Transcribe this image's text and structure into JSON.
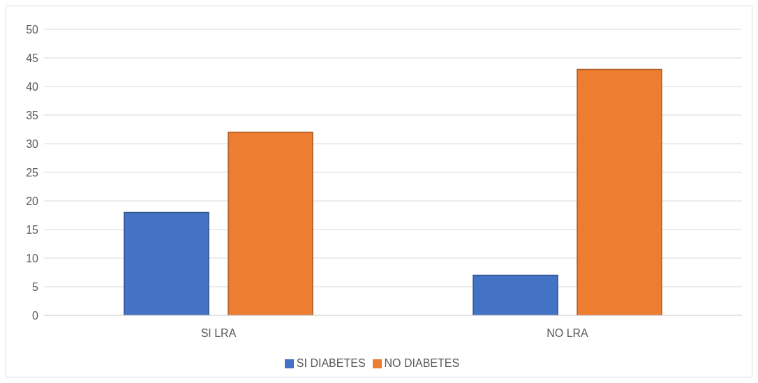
{
  "chart_data": {
    "type": "bar",
    "categories": [
      "SI LRA",
      "NO LRA"
    ],
    "series": [
      {
        "name": "SI DIABETES",
        "color": "#4472c4",
        "values": [
          18,
          7
        ]
      },
      {
        "name": "NO DIABETES",
        "color": "#ed7d31",
        "values": [
          32,
          43
        ]
      }
    ],
    "ylim": [
      0,
      50
    ],
    "yticks": [
      0,
      5,
      10,
      15,
      20,
      25,
      30,
      35,
      40,
      45,
      50
    ],
    "grid": "y",
    "legend": "bottom"
  }
}
